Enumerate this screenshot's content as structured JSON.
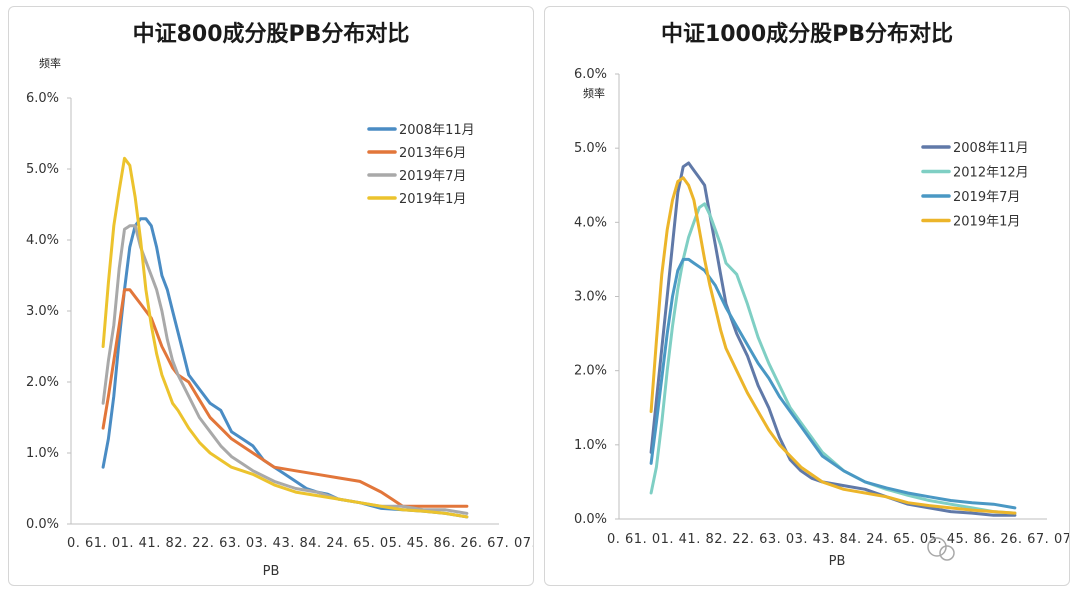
{
  "chart_data": [
    {
      "type": "line",
      "title": "中证800成分股PB分布对比",
      "ylabel": "频率",
      "xlabel": "PB",
      "ylim": [
        0,
        6
      ],
      "yticks": [
        "0.0%",
        "1.0%",
        "2.0%",
        "3.0%",
        "4.0%",
        "5.0%",
        "6.0%"
      ],
      "xlim": [
        0,
        8
      ],
      "xtick_text": "0. 61. 01. 41. 82. 22. 63. 03. 43. 84. 24. 65. 05. 45. 86. 26. 67. 07. 4",
      "legend_position": "top-right",
      "series": [
        {
          "name": "2008年11月",
          "color": "#4a8cc4",
          "values": [
            [
              0.6,
              0.8
            ],
            [
              0.7,
              1.2
            ],
            [
              0.8,
              1.8
            ],
            [
              0.9,
              2.6
            ],
            [
              1.0,
              3.3
            ],
            [
              1.1,
              3.9
            ],
            [
              1.2,
              4.2
            ],
            [
              1.3,
              4.3
            ],
            [
              1.4,
              4.3
            ],
            [
              1.5,
              4.2
            ],
            [
              1.6,
              3.9
            ],
            [
              1.7,
              3.5
            ],
            [
              1.8,
              3.3
            ],
            [
              1.9,
              3.0
            ],
            [
              2.0,
              2.7
            ],
            [
              2.1,
              2.4
            ],
            [
              2.2,
              2.1
            ],
            [
              2.4,
              1.9
            ],
            [
              2.6,
              1.7
            ],
            [
              2.8,
              1.6
            ],
            [
              3.0,
              1.3
            ],
            [
              3.2,
              1.2
            ],
            [
              3.4,
              1.1
            ],
            [
              3.6,
              0.9
            ],
            [
              3.8,
              0.8
            ],
            [
              4.0,
              0.7
            ],
            [
              4.2,
              0.6
            ],
            [
              4.4,
              0.5
            ],
            [
              4.6,
              0.45
            ],
            [
              4.8,
              0.42
            ],
            [
              5.0,
              0.35
            ],
            [
              5.4,
              0.3
            ],
            [
              5.8,
              0.22
            ],
            [
              6.2,
              0.2
            ],
            [
              6.6,
              0.18
            ],
            [
              7.0,
              0.15
            ],
            [
              7.4,
              0.1
            ]
          ]
        },
        {
          "name": "2013年6月",
          "color": "#e2763a",
          "values": [
            [
              0.6,
              1.35
            ],
            [
              0.7,
              1.8
            ],
            [
              0.8,
              2.3
            ],
            [
              0.9,
              2.8
            ],
            [
              1.0,
              3.3
            ],
            [
              1.1,
              3.3
            ],
            [
              1.2,
              3.2
            ],
            [
              1.3,
              3.1
            ],
            [
              1.4,
              3.0
            ],
            [
              1.5,
              2.9
            ],
            [
              1.6,
              2.7
            ],
            [
              1.7,
              2.5
            ],
            [
              1.8,
              2.35
            ],
            [
              1.9,
              2.2
            ],
            [
              2.0,
              2.1
            ],
            [
              2.2,
              2.0
            ],
            [
              2.4,
              1.75
            ],
            [
              2.6,
              1.5
            ],
            [
              2.8,
              1.35
            ],
            [
              3.0,
              1.2
            ],
            [
              3.2,
              1.1
            ],
            [
              3.4,
              1.0
            ],
            [
              3.6,
              0.9
            ],
            [
              3.8,
              0.8
            ],
            [
              4.2,
              0.75
            ],
            [
              4.6,
              0.7
            ],
            [
              5.0,
              0.65
            ],
            [
              5.4,
              0.6
            ],
            [
              5.8,
              0.45
            ],
            [
              6.0,
              0.35
            ],
            [
              6.2,
              0.25
            ],
            [
              6.6,
              0.25
            ],
            [
              7.0,
              0.25
            ],
            [
              7.4,
              0.25
            ]
          ]
        },
        {
          "name": "2019年7月",
          "color": "#a9a9a9",
          "values": [
            [
              0.6,
              1.7
            ],
            [
              0.7,
              2.3
            ],
            [
              0.8,
              2.8
            ],
            [
              0.9,
              3.6
            ],
            [
              1.0,
              4.15
            ],
            [
              1.1,
              4.2
            ],
            [
              1.2,
              4.2
            ],
            [
              1.3,
              3.9
            ],
            [
              1.4,
              3.7
            ],
            [
              1.5,
              3.5
            ],
            [
              1.6,
              3.3
            ],
            [
              1.7,
              3.0
            ],
            [
              1.8,
              2.6
            ],
            [
              1.9,
              2.3
            ],
            [
              2.0,
              2.1
            ],
            [
              2.2,
              1.8
            ],
            [
              2.4,
              1.5
            ],
            [
              2.6,
              1.3
            ],
            [
              2.8,
              1.1
            ],
            [
              3.0,
              0.95
            ],
            [
              3.2,
              0.85
            ],
            [
              3.4,
              0.75
            ],
            [
              3.8,
              0.6
            ],
            [
              4.2,
              0.5
            ],
            [
              4.6,
              0.45
            ],
            [
              5.0,
              0.35
            ],
            [
              5.4,
              0.3
            ],
            [
              5.8,
              0.25
            ],
            [
              6.2,
              0.25
            ],
            [
              6.6,
              0.2
            ],
            [
              7.0,
              0.2
            ],
            [
              7.4,
              0.15
            ]
          ]
        },
        {
          "name": "2019年1月",
          "color": "#ecc32d",
          "values": [
            [
              0.6,
              2.5
            ],
            [
              0.7,
              3.4
            ],
            [
              0.8,
              4.2
            ],
            [
              0.9,
              4.7
            ],
            [
              1.0,
              5.15
            ],
            [
              1.1,
              5.05
            ],
            [
              1.2,
              4.6
            ],
            [
              1.3,
              4.0
            ],
            [
              1.4,
              3.3
            ],
            [
              1.5,
              2.8
            ],
            [
              1.6,
              2.4
            ],
            [
              1.7,
              2.1
            ],
            [
              1.8,
              1.9
            ],
            [
              1.9,
              1.7
            ],
            [
              2.0,
              1.6
            ],
            [
              2.2,
              1.35
            ],
            [
              2.4,
              1.15
            ],
            [
              2.6,
              1.0
            ],
            [
              2.8,
              0.9
            ],
            [
              3.0,
              0.8
            ],
            [
              3.4,
              0.7
            ],
            [
              3.8,
              0.55
            ],
            [
              4.2,
              0.45
            ],
            [
              4.6,
              0.4
            ],
            [
              5.0,
              0.35
            ],
            [
              5.4,
              0.3
            ],
            [
              5.8,
              0.25
            ],
            [
              6.2,
              0.2
            ],
            [
              6.6,
              0.18
            ],
            [
              7.0,
              0.15
            ],
            [
              7.4,
              0.1
            ]
          ]
        }
      ]
    },
    {
      "type": "line",
      "title": "中证1000成分股PB分布对比",
      "ylabel": "频率",
      "xlabel": "PB",
      "ylim": [
        0,
        6
      ],
      "yticks": [
        "0.0%",
        "1.0%",
        "2.0%",
        "3.0%",
        "4.0%",
        "5.0%",
        "6.0%"
      ],
      "xlim": [
        0,
        8
      ],
      "xtick_text": "0. 61. 01. 41. 82. 22. 63. 03. 43. 84. 24. 65. 05. 45. 86. 26. 67. 07. 4",
      "legend_position": "top-right",
      "series": [
        {
          "name": "2008年11月",
          "color": "#6079a8",
          "values": [
            [
              0.6,
              0.9
            ],
            [
              0.7,
              1.6
            ],
            [
              0.8,
              2.3
            ],
            [
              0.9,
              3.0
            ],
            [
              1.0,
              3.7
            ],
            [
              1.1,
              4.4
            ],
            [
              1.2,
              4.75
            ],
            [
              1.3,
              4.8
            ],
            [
              1.4,
              4.7
            ],
            [
              1.5,
              4.6
            ],
            [
              1.6,
              4.5
            ],
            [
              1.7,
              4.1
            ],
            [
              1.8,
              3.7
            ],
            [
              1.9,
              3.3
            ],
            [
              2.0,
              2.9
            ],
            [
              2.2,
              2.5
            ],
            [
              2.4,
              2.2
            ],
            [
              2.6,
              1.8
            ],
            [
              2.8,
              1.5
            ],
            [
              3.0,
              1.1
            ],
            [
              3.2,
              0.8
            ],
            [
              3.4,
              0.65
            ],
            [
              3.6,
              0.55
            ],
            [
              3.8,
              0.5
            ],
            [
              4.2,
              0.45
            ],
            [
              4.6,
              0.4
            ],
            [
              5.0,
              0.3
            ],
            [
              5.4,
              0.2
            ],
            [
              5.8,
              0.15
            ],
            [
              6.2,
              0.1
            ],
            [
              6.6,
              0.08
            ],
            [
              7.0,
              0.05
            ],
            [
              7.4,
              0.05
            ]
          ]
        },
        {
          "name": "2012年12月",
          "color": "#7fcfc4",
          "values": [
            [
              0.6,
              0.35
            ],
            [
              0.7,
              0.7
            ],
            [
              0.8,
              1.3
            ],
            [
              0.9,
              2.0
            ],
            [
              1.0,
              2.6
            ],
            [
              1.1,
              3.1
            ],
            [
              1.2,
              3.5
            ],
            [
              1.3,
              3.8
            ],
            [
              1.4,
              4.0
            ],
            [
              1.5,
              4.2
            ],
            [
              1.6,
              4.25
            ],
            [
              1.7,
              4.1
            ],
            [
              1.8,
              3.9
            ],
            [
              1.9,
              3.7
            ],
            [
              2.0,
              3.45
            ],
            [
              2.2,
              3.3
            ],
            [
              2.4,
              2.9
            ],
            [
              2.6,
              2.45
            ],
            [
              2.8,
              2.1
            ],
            [
              3.0,
              1.8
            ],
            [
              3.2,
              1.5
            ],
            [
              3.4,
              1.3
            ],
            [
              3.6,
              1.1
            ],
            [
              3.8,
              0.9
            ],
            [
              4.2,
              0.65
            ],
            [
              4.6,
              0.5
            ],
            [
              5.0,
              0.4
            ],
            [
              5.4,
              0.32
            ],
            [
              5.8,
              0.25
            ],
            [
              6.2,
              0.2
            ],
            [
              6.6,
              0.15
            ],
            [
              7.0,
              0.1
            ],
            [
              7.4,
              0.08
            ]
          ]
        },
        {
          "name": "2019年7月",
          "color": "#4a98c4",
          "values": [
            [
              0.6,
              0.75
            ],
            [
              0.7,
              1.3
            ],
            [
              0.8,
              1.9
            ],
            [
              0.9,
              2.5
            ],
            [
              1.0,
              3.0
            ],
            [
              1.1,
              3.35
            ],
            [
              1.2,
              3.5
            ],
            [
              1.3,
              3.5
            ],
            [
              1.4,
              3.45
            ],
            [
              1.5,
              3.4
            ],
            [
              1.6,
              3.35
            ],
            [
              1.7,
              3.25
            ],
            [
              1.8,
              3.15
            ],
            [
              1.9,
              3.0
            ],
            [
              2.0,
              2.85
            ],
            [
              2.2,
              2.6
            ],
            [
              2.4,
              2.35
            ],
            [
              2.6,
              2.1
            ],
            [
              2.8,
              1.9
            ],
            [
              3.0,
              1.65
            ],
            [
              3.2,
              1.45
            ],
            [
              3.4,
              1.25
            ],
            [
              3.6,
              1.05
            ],
            [
              3.8,
              0.85
            ],
            [
              4.2,
              0.65
            ],
            [
              4.6,
              0.5
            ],
            [
              5.0,
              0.42
            ],
            [
              5.4,
              0.35
            ],
            [
              5.8,
              0.3
            ],
            [
              6.2,
              0.25
            ],
            [
              6.6,
              0.22
            ],
            [
              7.0,
              0.2
            ],
            [
              7.4,
              0.15
            ]
          ]
        },
        {
          "name": "2019年1月",
          "color": "#ecb52a",
          "values": [
            [
              0.6,
              1.45
            ],
            [
              0.7,
              2.4
            ],
            [
              0.8,
              3.3
            ],
            [
              0.9,
              3.9
            ],
            [
              1.0,
              4.3
            ],
            [
              1.1,
              4.55
            ],
            [
              1.2,
              4.6
            ],
            [
              1.3,
              4.5
            ],
            [
              1.4,
              4.3
            ],
            [
              1.5,
              3.9
            ],
            [
              1.6,
              3.5
            ],
            [
              1.7,
              3.15
            ],
            [
              1.8,
              2.85
            ],
            [
              1.9,
              2.55
            ],
            [
              2.0,
              2.3
            ],
            [
              2.2,
              2.0
            ],
            [
              2.4,
              1.7
            ],
            [
              2.6,
              1.45
            ],
            [
              2.8,
              1.2
            ],
            [
              3.0,
              1.0
            ],
            [
              3.2,
              0.85
            ],
            [
              3.4,
              0.7
            ],
            [
              3.6,
              0.6
            ],
            [
              3.8,
              0.5
            ],
            [
              4.2,
              0.4
            ],
            [
              4.6,
              0.35
            ],
            [
              5.0,
              0.3
            ],
            [
              5.4,
              0.22
            ],
            [
              5.8,
              0.18
            ],
            [
              6.2,
              0.15
            ],
            [
              6.6,
              0.12
            ],
            [
              7.0,
              0.1
            ],
            [
              7.4,
              0.08
            ]
          ]
        }
      ]
    }
  ]
}
